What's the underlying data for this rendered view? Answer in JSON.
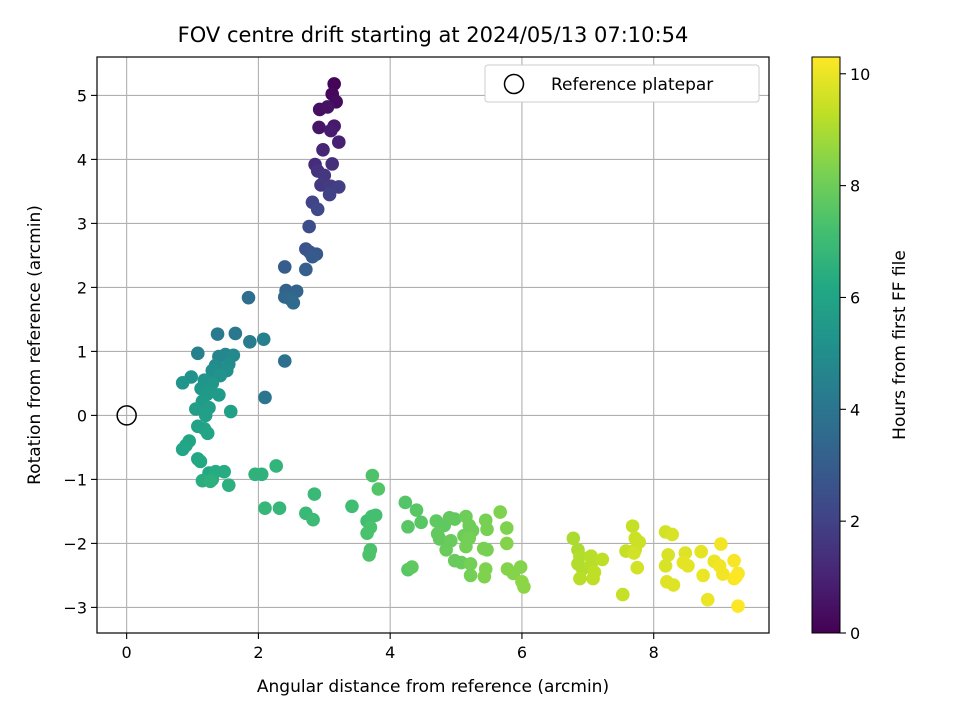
{
  "chart_data": {
    "type": "scatter",
    "title": "FOV centre drift starting at 2024/05/13 07:10:54",
    "xlabel": "Angular distance from reference (arcmin)",
    "ylabel": "Rotation from reference (arcmin)",
    "xlim": [
      -0.45,
      9.75
    ],
    "ylim": [
      -3.4,
      5.6
    ],
    "xticks": [
      0,
      2,
      4,
      6,
      8
    ],
    "yticks": [
      -3,
      -2,
      -1,
      0,
      1,
      2,
      3,
      4,
      5
    ],
    "xtick_labels": [
      "0",
      "2",
      "4",
      "6",
      "8"
    ],
    "ytick_labels": [
      "−3",
      "−2",
      "−1",
      "0",
      "1",
      "2",
      "3",
      "4",
      "5"
    ],
    "grid": true,
    "legend": {
      "position": "top-right",
      "entries": [
        {
          "label": "Reference platepar",
          "marker": "open-circle"
        }
      ]
    },
    "reference_point": {
      "x": 0,
      "y": 0
    },
    "colorbar": {
      "label": "Hours from first FF file",
      "colormap": "viridis",
      "range": [
        0,
        10.3
      ],
      "ticks": [
        0,
        2,
        4,
        6,
        8,
        10
      ],
      "tick_labels": [
        "0",
        "2",
        "4",
        "6",
        "8",
        "10"
      ]
    },
    "points": [
      {
        "x": 3.15,
        "y": 5.18,
        "c": 0.1
      },
      {
        "x": 3.12,
        "y": 5.02,
        "c": 0.2
      },
      {
        "x": 3.18,
        "y": 4.9,
        "c": 0.3
      },
      {
        "x": 2.93,
        "y": 4.78,
        "c": 0.4
      },
      {
        "x": 3.05,
        "y": 4.82,
        "c": 0.5
      },
      {
        "x": 2.92,
        "y": 4.5,
        "c": 0.6
      },
      {
        "x": 3.15,
        "y": 4.52,
        "c": 0.7
      },
      {
        "x": 3.1,
        "y": 4.45,
        "c": 0.8
      },
      {
        "x": 3.22,
        "y": 4.27,
        "c": 0.9
      },
      {
        "x": 2.98,
        "y": 4.15,
        "c": 1.1
      },
      {
        "x": 2.86,
        "y": 3.92,
        "c": 1.3
      },
      {
        "x": 3.12,
        "y": 3.93,
        "c": 1.4
      },
      {
        "x": 2.9,
        "y": 3.82,
        "c": 1.5
      },
      {
        "x": 3.0,
        "y": 3.75,
        "c": 1.6
      },
      {
        "x": 2.95,
        "y": 3.6,
        "c": 1.7
      },
      {
        "x": 3.1,
        "y": 3.58,
        "c": 1.8
      },
      {
        "x": 3.22,
        "y": 3.57,
        "c": 1.9
      },
      {
        "x": 3.08,
        "y": 3.45,
        "c": 2.0
      },
      {
        "x": 2.82,
        "y": 3.33,
        "c": 2.1
      },
      {
        "x": 2.9,
        "y": 3.22,
        "c": 2.2
      },
      {
        "x": 2.77,
        "y": 2.95,
        "c": 2.4
      },
      {
        "x": 2.72,
        "y": 2.6,
        "c": 2.6
      },
      {
        "x": 2.78,
        "y": 2.55,
        "c": 2.7
      },
      {
        "x": 2.88,
        "y": 2.52,
        "c": 2.8
      },
      {
        "x": 2.82,
        "y": 2.48,
        "c": 2.9
      },
      {
        "x": 2.4,
        "y": 2.32,
        "c": 3.0
      },
      {
        "x": 2.72,
        "y": 2.28,
        "c": 3.1
      },
      {
        "x": 2.42,
        "y": 1.95,
        "c": 3.2
      },
      {
        "x": 2.58,
        "y": 1.94,
        "c": 3.3
      },
      {
        "x": 2.4,
        "y": 1.85,
        "c": 3.4
      },
      {
        "x": 2.48,
        "y": 1.82,
        "c": 3.5
      },
      {
        "x": 2.53,
        "y": 1.76,
        "c": 3.6
      },
      {
        "x": 1.85,
        "y": 1.84,
        "c": 3.7
      },
      {
        "x": 2.4,
        "y": 0.85,
        "c": 3.8
      },
      {
        "x": 2.1,
        "y": 0.28,
        "c": 4.0
      },
      {
        "x": 1.65,
        "y": 1.28,
        "c": 4.1
      },
      {
        "x": 1.38,
        "y": 1.27,
        "c": 4.2
      },
      {
        "x": 1.87,
        "y": 1.15,
        "c": 4.3
      },
      {
        "x": 2.08,
        "y": 1.19,
        "c": 4.4
      },
      {
        "x": 1.08,
        "y": 0.97,
        "c": 4.5
      },
      {
        "x": 1.4,
        "y": 0.92,
        "c": 4.6
      },
      {
        "x": 1.5,
        "y": 0.95,
        "c": 4.7
      },
      {
        "x": 1.62,
        "y": 0.94,
        "c": 4.8
      },
      {
        "x": 1.35,
        "y": 0.78,
        "c": 4.9
      },
      {
        "x": 1.55,
        "y": 0.8,
        "c": 5.0
      },
      {
        "x": 1.3,
        "y": 0.7,
        "c": 5.1
      },
      {
        "x": 1.52,
        "y": 0.7,
        "c": 5.1
      },
      {
        "x": 1.42,
        "y": 0.62,
        "c": 5.2
      },
      {
        "x": 0.98,
        "y": 0.6,
        "c": 5.2
      },
      {
        "x": 0.85,
        "y": 0.51,
        "c": 5.3
      },
      {
        "x": 1.18,
        "y": 0.55,
        "c": 5.3
      },
      {
        "x": 1.3,
        "y": 0.5,
        "c": 5.4
      },
      {
        "x": 1.13,
        "y": 0.42,
        "c": 5.4
      },
      {
        "x": 1.28,
        "y": 0.38,
        "c": 5.5
      },
      {
        "x": 1.22,
        "y": 0.33,
        "c": 5.5
      },
      {
        "x": 1.4,
        "y": 0.32,
        "c": 5.6
      },
      {
        "x": 1.15,
        "y": 0.22,
        "c": 5.6
      },
      {
        "x": 1.05,
        "y": 0.1,
        "c": 5.7
      },
      {
        "x": 1.25,
        "y": 0.12,
        "c": 5.7
      },
      {
        "x": 1.58,
        "y": 0.06,
        "c": 5.8
      },
      {
        "x": 1.2,
        "y": 0.0,
        "c": 5.8
      },
      {
        "x": 1.08,
        "y": -0.17,
        "c": 5.9
      },
      {
        "x": 1.18,
        "y": -0.21,
        "c": 5.9
      },
      {
        "x": 1.23,
        "y": -0.28,
        "c": 6.0
      },
      {
        "x": 0.95,
        "y": -0.4,
        "c": 6.0
      },
      {
        "x": 0.9,
        "y": -0.47,
        "c": 6.0
      },
      {
        "x": 0.85,
        "y": -0.53,
        "c": 6.1
      },
      {
        "x": 1.08,
        "y": -0.68,
        "c": 6.1
      },
      {
        "x": 1.12,
        "y": -0.72,
        "c": 6.2
      },
      {
        "x": 1.25,
        "y": -0.9,
        "c": 6.2
      },
      {
        "x": 1.35,
        "y": -0.88,
        "c": 6.3
      },
      {
        "x": 1.48,
        "y": -0.88,
        "c": 6.3
      },
      {
        "x": 1.3,
        "y": -1.0,
        "c": 6.4
      },
      {
        "x": 1.15,
        "y": -1.02,
        "c": 6.4
      },
      {
        "x": 1.27,
        "y": -1.03,
        "c": 6.5
      },
      {
        "x": 1.55,
        "y": -1.09,
        "c": 6.5
      },
      {
        "x": 1.95,
        "y": -0.92,
        "c": 6.6
      },
      {
        "x": 2.05,
        "y": -0.92,
        "c": 6.6
      },
      {
        "x": 2.27,
        "y": -0.79,
        "c": 6.7
      },
      {
        "x": 2.1,
        "y": -1.45,
        "c": 6.8
      },
      {
        "x": 2.32,
        "y": -1.45,
        "c": 6.8
      },
      {
        "x": 2.85,
        "y": -1.23,
        "c": 6.9
      },
      {
        "x": 2.72,
        "y": -1.53,
        "c": 6.9
      },
      {
        "x": 2.83,
        "y": -1.63,
        "c": 7.0
      },
      {
        "x": 3.42,
        "y": -1.42,
        "c": 7.1
      },
      {
        "x": 3.65,
        "y": -1.65,
        "c": 7.1
      },
      {
        "x": 3.72,
        "y": -1.58,
        "c": 7.2
      },
      {
        "x": 3.78,
        "y": -1.56,
        "c": 7.2
      },
      {
        "x": 3.7,
        "y": -1.75,
        "c": 7.3
      },
      {
        "x": 3.65,
        "y": -1.84,
        "c": 7.3
      },
      {
        "x": 3.7,
        "y": -2.1,
        "c": 7.3
      },
      {
        "x": 3.68,
        "y": -2.18,
        "c": 7.4
      },
      {
        "x": 3.73,
        "y": -0.94,
        "c": 7.4
      },
      {
        "x": 3.82,
        "y": -1.15,
        "c": 7.5
      },
      {
        "x": 4.23,
        "y": -1.36,
        "c": 7.5
      },
      {
        "x": 4.4,
        "y": -1.48,
        "c": 7.6
      },
      {
        "x": 4.47,
        "y": -1.67,
        "c": 7.6
      },
      {
        "x": 4.27,
        "y": -1.74,
        "c": 7.6
      },
      {
        "x": 4.27,
        "y": -2.41,
        "c": 7.6
      },
      {
        "x": 4.33,
        "y": -2.37,
        "c": 7.7
      },
      {
        "x": 4.7,
        "y": -1.65,
        "c": 7.7
      },
      {
        "x": 4.82,
        "y": -1.72,
        "c": 7.7
      },
      {
        "x": 4.9,
        "y": -1.6,
        "c": 7.8
      },
      {
        "x": 4.98,
        "y": -1.62,
        "c": 7.8
      },
      {
        "x": 4.72,
        "y": -1.85,
        "c": 7.8
      },
      {
        "x": 4.75,
        "y": -1.93,
        "c": 7.8
      },
      {
        "x": 4.92,
        "y": -1.96,
        "c": 7.9
      },
      {
        "x": 4.85,
        "y": -2.1,
        "c": 7.9
      },
      {
        "x": 4.98,
        "y": -2.27,
        "c": 7.9
      },
      {
        "x": 5.08,
        "y": -2.3,
        "c": 7.9
      },
      {
        "x": 5.15,
        "y": -1.58,
        "c": 8.0
      },
      {
        "x": 5.2,
        "y": -1.72,
        "c": 8.0
      },
      {
        "x": 5.25,
        "y": -1.8,
        "c": 8.0
      },
      {
        "x": 5.12,
        "y": -1.88,
        "c": 8.0
      },
      {
        "x": 5.2,
        "y": -1.92,
        "c": 8.1
      },
      {
        "x": 5.15,
        "y": -2.05,
        "c": 8.1
      },
      {
        "x": 5.22,
        "y": -2.32,
        "c": 8.1
      },
      {
        "x": 5.22,
        "y": -2.5,
        "c": 8.1
      },
      {
        "x": 5.45,
        "y": -1.64,
        "c": 8.2
      },
      {
        "x": 5.47,
        "y": -1.78,
        "c": 8.2
      },
      {
        "x": 5.42,
        "y": -2.08,
        "c": 8.2
      },
      {
        "x": 5.47,
        "y": -2.1,
        "c": 8.2
      },
      {
        "x": 5.45,
        "y": -2.4,
        "c": 8.3
      },
      {
        "x": 5.43,
        "y": -2.52,
        "c": 8.3
      },
      {
        "x": 5.67,
        "y": -1.51,
        "c": 8.3
      },
      {
        "x": 5.77,
        "y": -1.76,
        "c": 8.3
      },
      {
        "x": 5.77,
        "y": -2.0,
        "c": 8.4
      },
      {
        "x": 5.78,
        "y": -2.4,
        "c": 8.4
      },
      {
        "x": 5.87,
        "y": -2.47,
        "c": 8.4
      },
      {
        "x": 5.98,
        "y": -2.37,
        "c": 8.4
      },
      {
        "x": 6.0,
        "y": -2.6,
        "c": 8.5
      },
      {
        "x": 6.03,
        "y": -2.68,
        "c": 8.5
      },
      {
        "x": 6.78,
        "y": -1.92,
        "c": 9.0
      },
      {
        "x": 6.85,
        "y": -2.1,
        "c": 9.0
      },
      {
        "x": 6.88,
        "y": -2.2,
        "c": 9.1
      },
      {
        "x": 6.85,
        "y": -2.32,
        "c": 9.1
      },
      {
        "x": 6.92,
        "y": -2.4,
        "c": 9.1
      },
      {
        "x": 6.88,
        "y": -2.55,
        "c": 9.2
      },
      {
        "x": 7.05,
        "y": -2.2,
        "c": 9.2
      },
      {
        "x": 7.05,
        "y": -2.33,
        "c": 9.2
      },
      {
        "x": 7.1,
        "y": -2.45,
        "c": 9.3
      },
      {
        "x": 7.08,
        "y": -2.55,
        "c": 9.3
      },
      {
        "x": 7.22,
        "y": -2.25,
        "c": 9.3
      },
      {
        "x": 7.53,
        "y": -2.8,
        "c": 9.4
      },
      {
        "x": 7.58,
        "y": -2.12,
        "c": 9.4
      },
      {
        "x": 7.68,
        "y": -1.73,
        "c": 9.4
      },
      {
        "x": 7.72,
        "y": -1.92,
        "c": 9.5
      },
      {
        "x": 7.78,
        "y": -1.98,
        "c": 9.5
      },
      {
        "x": 7.72,
        "y": -2.1,
        "c": 9.5
      },
      {
        "x": 7.7,
        "y": -2.15,
        "c": 9.6
      },
      {
        "x": 7.75,
        "y": -2.38,
        "c": 9.6
      },
      {
        "x": 8.18,
        "y": -1.82,
        "c": 9.6
      },
      {
        "x": 8.28,
        "y": -1.86,
        "c": 9.7
      },
      {
        "x": 8.22,
        "y": -2.18,
        "c": 9.7
      },
      {
        "x": 8.18,
        "y": -2.35,
        "c": 9.7
      },
      {
        "x": 8.2,
        "y": -2.6,
        "c": 9.8
      },
      {
        "x": 8.3,
        "y": -2.65,
        "c": 9.8
      },
      {
        "x": 8.48,
        "y": -2.15,
        "c": 9.8
      },
      {
        "x": 8.45,
        "y": -2.3,
        "c": 9.9
      },
      {
        "x": 8.52,
        "y": -2.35,
        "c": 9.9
      },
      {
        "x": 8.72,
        "y": -2.13,
        "c": 9.9
      },
      {
        "x": 8.75,
        "y": -2.5,
        "c": 10.0
      },
      {
        "x": 8.82,
        "y": -2.88,
        "c": 10.0
      },
      {
        "x": 8.92,
        "y": -2.28,
        "c": 10.0
      },
      {
        "x": 9.02,
        "y": -2.01,
        "c": 10.1
      },
      {
        "x": 9.0,
        "y": -2.35,
        "c": 10.1
      },
      {
        "x": 9.05,
        "y": -2.48,
        "c": 10.1
      },
      {
        "x": 9.22,
        "y": -2.27,
        "c": 10.2
      },
      {
        "x": 9.22,
        "y": -2.55,
        "c": 10.2
      },
      {
        "x": 9.28,
        "y": -2.47,
        "c": 10.2
      },
      {
        "x": 9.25,
        "y": -2.52,
        "c": 10.3
      },
      {
        "x": 9.28,
        "y": -2.98,
        "c": 10.3
      }
    ]
  }
}
